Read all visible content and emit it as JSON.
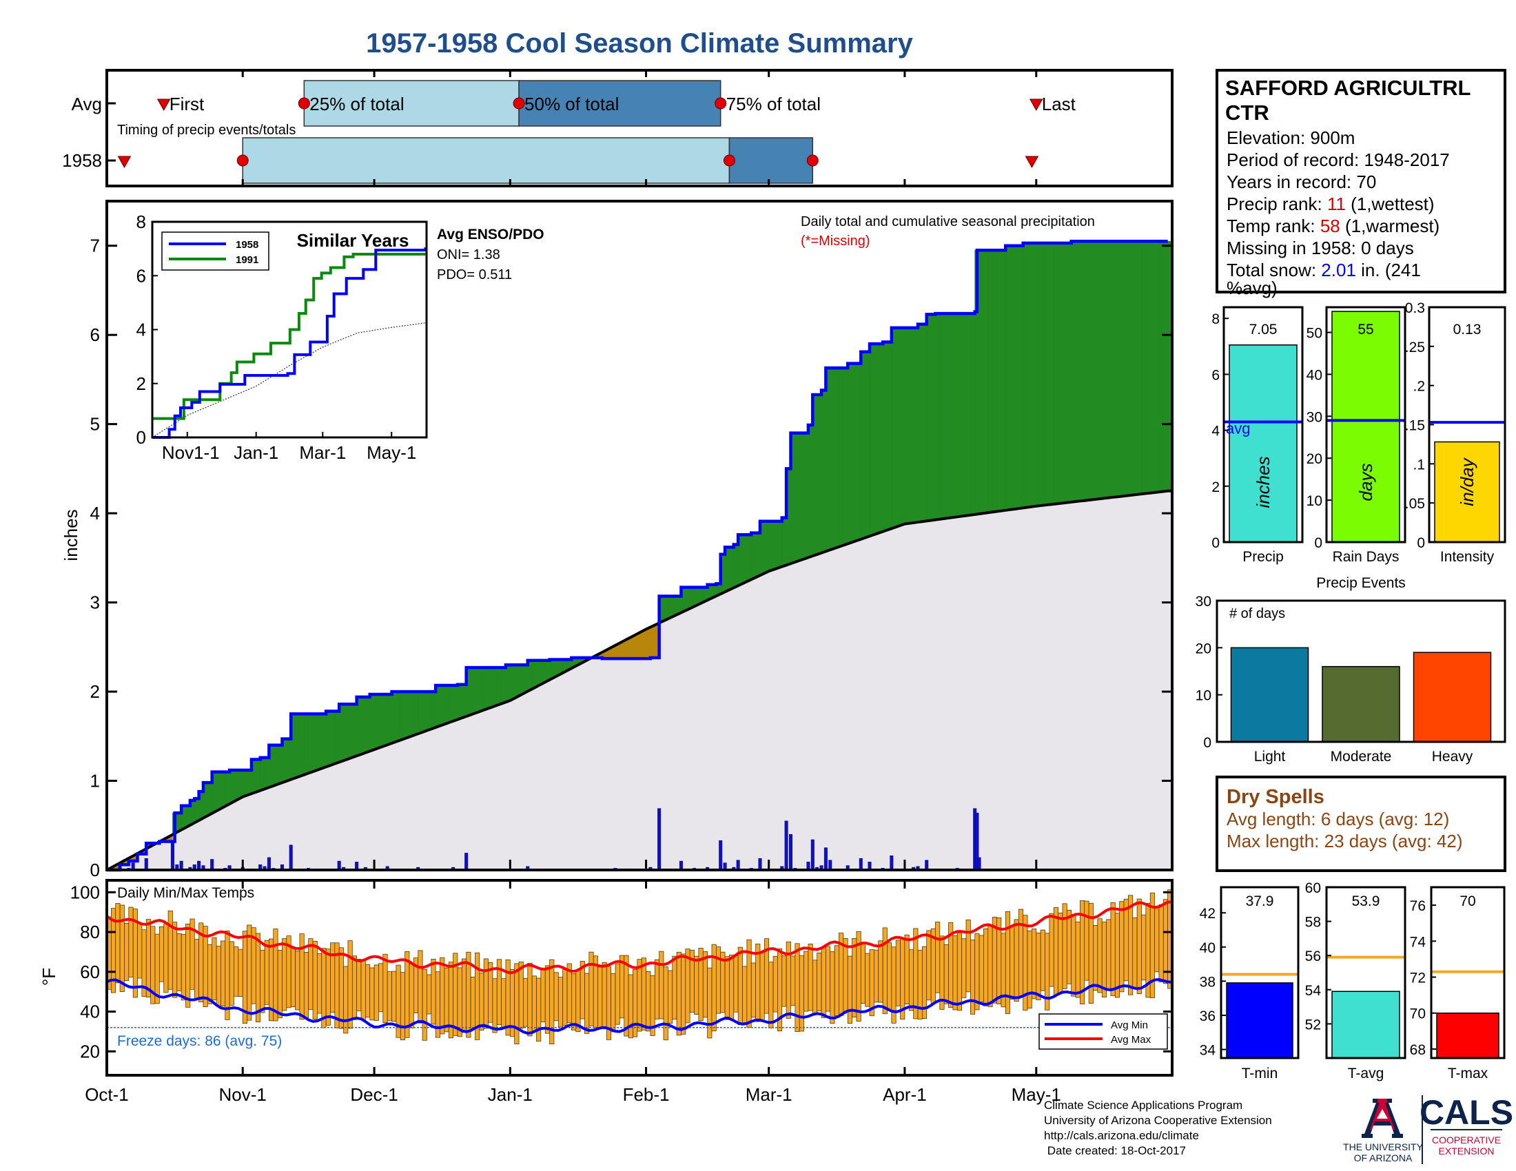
{
  "title": "1957-1958 Cool Season Climate Summary",
  "colors": {
    "title": "#1f4e8c",
    "light_blue": "#add8e6",
    "steel_blue": "#4682b4",
    "marker_red": "#e00000",
    "cum_1958": "#0000ff",
    "cum_1991": "#0a8a0a",
    "above_avg_fill": "#228b22",
    "below_avg_fill": "#b8860b",
    "avg_area_fill": "#e8e6ea",
    "precip_bar": "#40e0d0",
    "rain_days_bar": "#7cfc00",
    "intensity_bar": "#ffd700",
    "light_bar": "#0b7aa0",
    "moderate_bar": "#556b2f",
    "heavy_bar": "#ff4500",
    "temp_bar": "#f5a623",
    "avg_line_orange": "#f5a623",
    "tmin_bar": "#0000ff",
    "tavg_bar": "#40e0d0",
    "tmax_bar": "#ff0000",
    "dry_spell_text": "#8b4513",
    "freeze_text": "#1e6bd6"
  },
  "chart_data": [
    {
      "id": "timing",
      "type": "bar",
      "title": "Timing of precip events/totals",
      "rows": [
        "Avg",
        "1958"
      ],
      "labels": {
        "first": "First",
        "p25": "25% of total",
        "p50": "50% of total",
        "p75": "75% of total",
        "last": "Last"
      },
      "avg": {
        "first": "Oct-14",
        "p25": "Nov-15",
        "p50": "Jan-3",
        "p75": "Feb-18",
        "last": "May-1"
      },
      "y1958": {
        "first": "Oct-5",
        "p25": "Nov-1",
        "p50": "Feb-20",
        "p75": "Mar-11",
        "last": "Apr-30"
      }
    },
    {
      "id": "cumulative",
      "type": "area",
      "title": "Daily total and cumulative seasonal precipitation",
      "missing_note": "(*=Missing)",
      "ylabel": "inches",
      "x_ticks": [
        "Oct-1",
        "Nov-1",
        "Dec-1",
        "Jan-1",
        "Feb-1",
        "Mar-1",
        "Apr-1",
        "May-1"
      ],
      "ylim": [
        0,
        7.5
      ],
      "y_ticks": [
        0,
        1,
        2,
        3,
        4,
        5,
        6,
        7
      ],
      "avg_cumulative": [
        [
          0,
          0
        ],
        [
          31,
          0.82
        ],
        [
          61,
          1.35
        ],
        [
          92,
          1.9
        ],
        [
          123,
          2.7
        ],
        [
          151,
          3.35
        ],
        [
          182,
          3.88
        ],
        [
          212,
          4.08
        ],
        [
          242,
          4.25
        ]
      ],
      "cumulative_1958_steps": [
        [
          0,
          0
        ],
        [
          3,
          0.06
        ],
        [
          5,
          0.1
        ],
        [
          7,
          0.18
        ],
        [
          9,
          0.3
        ],
        [
          12,
          0.32
        ],
        [
          15,
          0.32
        ],
        [
          15.5,
          0.64
        ],
        [
          17,
          0.72
        ],
        [
          19,
          0.78
        ],
        [
          20,
          0.8
        ],
        [
          21,
          0.88
        ],
        [
          22,
          0.98
        ],
        [
          24,
          1.1
        ],
        [
          28,
          1.12
        ],
        [
          33,
          1.24
        ],
        [
          35,
          1.26
        ],
        [
          37,
          1.4
        ],
        [
          40,
          1.47
        ],
        [
          42,
          1.75
        ],
        [
          50,
          1.78
        ],
        [
          53,
          1.86
        ],
        [
          57,
          1.94
        ],
        [
          60,
          1.97
        ],
        [
          65,
          2.0
        ],
        [
          75,
          2.07
        ],
        [
          80,
          2.08
        ],
        [
          82,
          2.27
        ],
        [
          91,
          2.3
        ],
        [
          96,
          2.35
        ],
        [
          101,
          2.36
        ],
        [
          106,
          2.38
        ],
        [
          110,
          2.38
        ],
        [
          113,
          2.37
        ],
        [
          116,
          2.37
        ],
        [
          119,
          2.37
        ],
        [
          124,
          2.38
        ],
        [
          126,
          3.07
        ],
        [
          131,
          3.17
        ],
        [
          134,
          3.17
        ],
        [
          137,
          3.2
        ],
        [
          139,
          3.21
        ],
        [
          140,
          3.54
        ],
        [
          141,
          3.62
        ],
        [
          143,
          3.65
        ],
        [
          144,
          3.76
        ],
        [
          147,
          3.78
        ],
        [
          149,
          3.91
        ],
        [
          154,
          3.95
        ],
        [
          155,
          4.5
        ],
        [
          156,
          4.9
        ],
        [
          160,
          4.99
        ],
        [
          161,
          5.33
        ],
        [
          163,
          5.38
        ],
        [
          164,
          5.63
        ],
        [
          169,
          5.68
        ],
        [
          172,
          5.81
        ],
        [
          174,
          5.9
        ],
        [
          177,
          5.92
        ],
        [
          179,
          6.08
        ],
        [
          185,
          6.12
        ],
        [
          187,
          6.23
        ],
        [
          189,
          6.24
        ],
        [
          198,
          6.26
        ],
        [
          198.5,
          6.95
        ],
        [
          205,
          7.0
        ],
        [
          209,
          7.03
        ],
        [
          220,
          7.05
        ],
        [
          242,
          7.05
        ]
      ],
      "daily_1958": [
        [
          3,
          0.03
        ],
        [
          5,
          0.02
        ],
        [
          6,
          0.08
        ],
        [
          9,
          0.13
        ],
        [
          15,
          0.32
        ],
        [
          16,
          0.06
        ],
        [
          17,
          0.1
        ],
        [
          19,
          0.03
        ],
        [
          20,
          0.06
        ],
        [
          21,
          0.1
        ],
        [
          22,
          0.05
        ],
        [
          24,
          0.12
        ],
        [
          27,
          0.02
        ],
        [
          28,
          0.05
        ],
        [
          31,
          0.03
        ],
        [
          35,
          0.06
        ],
        [
          36,
          0.04
        ],
        [
          37,
          0.14
        ],
        [
          38,
          0.02
        ],
        [
          40,
          0.06
        ],
        [
          42,
          0.28
        ],
        [
          46,
          0.02
        ],
        [
          53,
          0.1
        ],
        [
          54,
          0.03
        ],
        [
          57,
          0.09
        ],
        [
          59,
          0.03
        ],
        [
          64,
          0.04
        ],
        [
          71,
          0.03
        ],
        [
          79,
          0.03
        ],
        [
          82,
          0.19
        ],
        [
          88,
          0.01
        ],
        [
          96,
          0.04
        ],
        [
          101,
          0.01
        ],
        [
          105,
          0.01
        ],
        [
          116,
          0.02
        ],
        [
          124,
          0.03
        ],
        [
          126,
          0.69
        ],
        [
          131,
          0.1
        ],
        [
          134,
          0.02
        ],
        [
          137,
          0.03
        ],
        [
          139,
          0.01
        ],
        [
          140,
          0.33
        ],
        [
          141,
          0.08
        ],
        [
          143,
          0.03
        ],
        [
          144,
          0.11
        ],
        [
          147,
          0.02
        ],
        [
          149,
          0.13
        ],
        [
          154,
          0.04
        ],
        [
          155,
          0.55
        ],
        [
          156,
          0.4
        ],
        [
          157,
          0.02
        ],
        [
          160,
          0.09
        ],
        [
          161,
          0.34
        ],
        [
          162,
          0.03
        ],
        [
          163,
          0.05
        ],
        [
          164,
          0.25
        ],
        [
          165,
          0.11
        ],
        [
          169,
          0.05
        ],
        [
          172,
          0.13
        ],
        [
          174,
          0.09
        ],
        [
          177,
          0.02
        ],
        [
          179,
          0.16
        ],
        [
          184,
          0.03
        ],
        [
          185,
          0.04
        ],
        [
          187,
          0.11
        ],
        [
          189,
          0.01
        ],
        [
          194,
          0.02
        ],
        [
          198,
          0.69
        ],
        [
          198.5,
          0.64
        ],
        [
          199,
          0.14
        ]
      ]
    },
    {
      "id": "similar_years",
      "type": "line",
      "title": "Similar Years",
      "x_ticks": [
        "Nov1-1",
        "Jan-1",
        "Mar-1",
        "May-1"
      ],
      "ylim": [
        0,
        8
      ],
      "y_ticks": [
        0,
        2,
        4,
        6,
        8
      ],
      "series": [
        {
          "name": "1958",
          "steps": [
            [
              0,
              0
            ],
            [
              15,
              0.3
            ],
            [
              20,
              0.8
            ],
            [
              25,
              1.1
            ],
            [
              35,
              1.3
            ],
            [
              42,
              1.7
            ],
            [
              60,
              1.97
            ],
            [
              82,
              2.3
            ],
            [
              120,
              2.37
            ],
            [
              126,
              3.07
            ],
            [
              140,
              3.54
            ],
            [
              155,
              4.5
            ],
            [
              161,
              5.33
            ],
            [
              172,
              5.9
            ],
            [
              187,
              6.23
            ],
            [
              198,
              6.95
            ],
            [
              242,
              7.05
            ]
          ]
        },
        {
          "name": "1991",
          "steps": [
            [
              0,
              0.7
            ],
            [
              25,
              0.7
            ],
            [
              28,
              1.4
            ],
            [
              55,
              1.4
            ],
            [
              60,
              2.0
            ],
            [
              70,
              2.4
            ],
            [
              75,
              2.8
            ],
            [
              90,
              3.1
            ],
            [
              105,
              3.5
            ],
            [
              118,
              3.5
            ],
            [
              122,
              4.0
            ],
            [
              130,
              4.6
            ],
            [
              136,
              5.1
            ],
            [
              143,
              5.9
            ],
            [
              150,
              6.1
            ],
            [
              158,
              6.3
            ],
            [
              170,
              6.7
            ],
            [
              178,
              6.8
            ],
            [
              242,
              6.8
            ]
          ]
        }
      ],
      "avg_dotted": [
        [
          0,
          0
        ],
        [
          31,
          0.82
        ],
        [
          61,
          1.35
        ],
        [
          92,
          1.9
        ],
        [
          123,
          2.7
        ],
        [
          151,
          3.35
        ],
        [
          182,
          3.88
        ],
        [
          212,
          4.08
        ],
        [
          242,
          4.25
        ]
      ]
    },
    {
      "id": "season_totals",
      "type": "bar",
      "panels": [
        {
          "name": "Precip",
          "unit": "inches",
          "value": 7.05,
          "value_label": "7.05",
          "avg": 4.3,
          "avg_label": "avg",
          "ylim": [
            0,
            8.4
          ],
          "y_ticks": [
            0,
            2,
            4,
            6,
            8
          ]
        },
        {
          "name": "Rain Days",
          "unit": "days",
          "value": 55,
          "value_label": "55",
          "avg": 29,
          "ylim": [
            0,
            56
          ],
          "y_ticks": [
            0,
            10,
            20,
            30,
            40,
            50
          ]
        },
        {
          "name": "Intensity",
          "unit": "in/day",
          "value": 0.128,
          "value_label": "0.13",
          "avg": 0.153,
          "ylim": [
            0,
            0.3
          ],
          "y_ticks": [
            0,
            0.05,
            0.1,
            0.15,
            0.2,
            0.25,
            0.3
          ]
        }
      ]
    },
    {
      "id": "precip_events",
      "type": "bar",
      "title": "Precip Events",
      "ylabel": "# of days",
      "categories": [
        "Light",
        "Moderate",
        "Heavy"
      ],
      "values": [
        20,
        16,
        19
      ],
      "ylim": [
        0,
        30
      ],
      "y_ticks": [
        0,
        10,
        20,
        30
      ]
    },
    {
      "id": "temps",
      "type": "bar",
      "title": "Daily Min/Max Temps",
      "ylabel": "°F",
      "ylim": [
        8,
        106
      ],
      "y_ticks": [
        20,
        40,
        60,
        80,
        100
      ],
      "freeze_line": 32,
      "freeze_label": "Freeze days: 86 (avg. 75)",
      "legend": [
        "Avg Min",
        "Avg Max"
      ],
      "avg_min": [
        [
          0,
          55
        ],
        [
          31,
          41
        ],
        [
          61,
          34
        ],
        [
          92,
          31
        ],
        [
          123,
          32
        ],
        [
          151,
          36
        ],
        [
          182,
          42
        ],
        [
          212,
          48
        ],
        [
          242,
          55
        ]
      ],
      "avg_max": [
        [
          0,
          88
        ],
        [
          31,
          77
        ],
        [
          61,
          66
        ],
        [
          92,
          61
        ],
        [
          123,
          64
        ],
        [
          151,
          70
        ],
        [
          182,
          76
        ],
        [
          212,
          85
        ],
        [
          242,
          95
        ]
      ]
    },
    {
      "id": "temp_summary",
      "type": "bar",
      "panels": [
        {
          "name": "T-min",
          "value": 37.9,
          "value_label": "37.9",
          "avg": 38.4,
          "ylim": [
            33.5,
            43.5
          ],
          "y_ticks": [
            34,
            36,
            38,
            40,
            42
          ]
        },
        {
          "name": "T-avg",
          "value": 53.9,
          "value_label": "53.9",
          "avg": 55.9,
          "ylim": [
            50,
            60
          ],
          "y_ticks": [
            52,
            54,
            56,
            58,
            60
          ]
        },
        {
          "name": "T-max",
          "value": 70,
          "value_label": "70",
          "avg": 72.3,
          "ylim": [
            67.5,
            77
          ],
          "y_ticks": [
            68,
            70,
            72,
            74,
            76
          ]
        }
      ]
    }
  ],
  "station": {
    "name_line1": "SAFFORD AGRICULTRL",
    "name_line2": "CTR",
    "elevation": "Elevation: 900m",
    "period": "Period of record: 1948-2017",
    "years": "Years in record: 70",
    "precip_rank_prefix": "Precip rank: ",
    "precip_rank_value": "11",
    "precip_rank_suffix": " (1,wettest)",
    "temp_rank_prefix": "Temp rank: ",
    "temp_rank_value": "58",
    "temp_rank_suffix": " (1,warmest)",
    "missing": "Missing in 1958: 0 days",
    "snow_prefix": "Total snow: ",
    "snow_value": "2.01",
    "snow_suffix": " in. (241",
    "snow_suffix2": "%avg)"
  },
  "enso": {
    "title": "Avg ENSO/PDO",
    "oni": "ONI= 1.38",
    "pdo": "PDO= 0.511"
  },
  "dry_spells": {
    "title": "Dry Spells",
    "avg": "Avg length: 6 days (avg: 12)",
    "max": "Max length: 23 days (avg: 42)"
  },
  "footer": {
    "line1": "Climate Science Applications Program",
    "line2": "University of Arizona Cooperative Extension",
    "line3": "http://cals.arizona.edu/climate",
    "line4": " Date created: 18-Oct-2017",
    "ua_line1": "THE UNIVERSITY",
    "ua_line2": "OF ARIZONA",
    "cals": "CALS",
    "cals_line1": "COOPERATIVE",
    "cals_line2": "EXTENSION"
  }
}
